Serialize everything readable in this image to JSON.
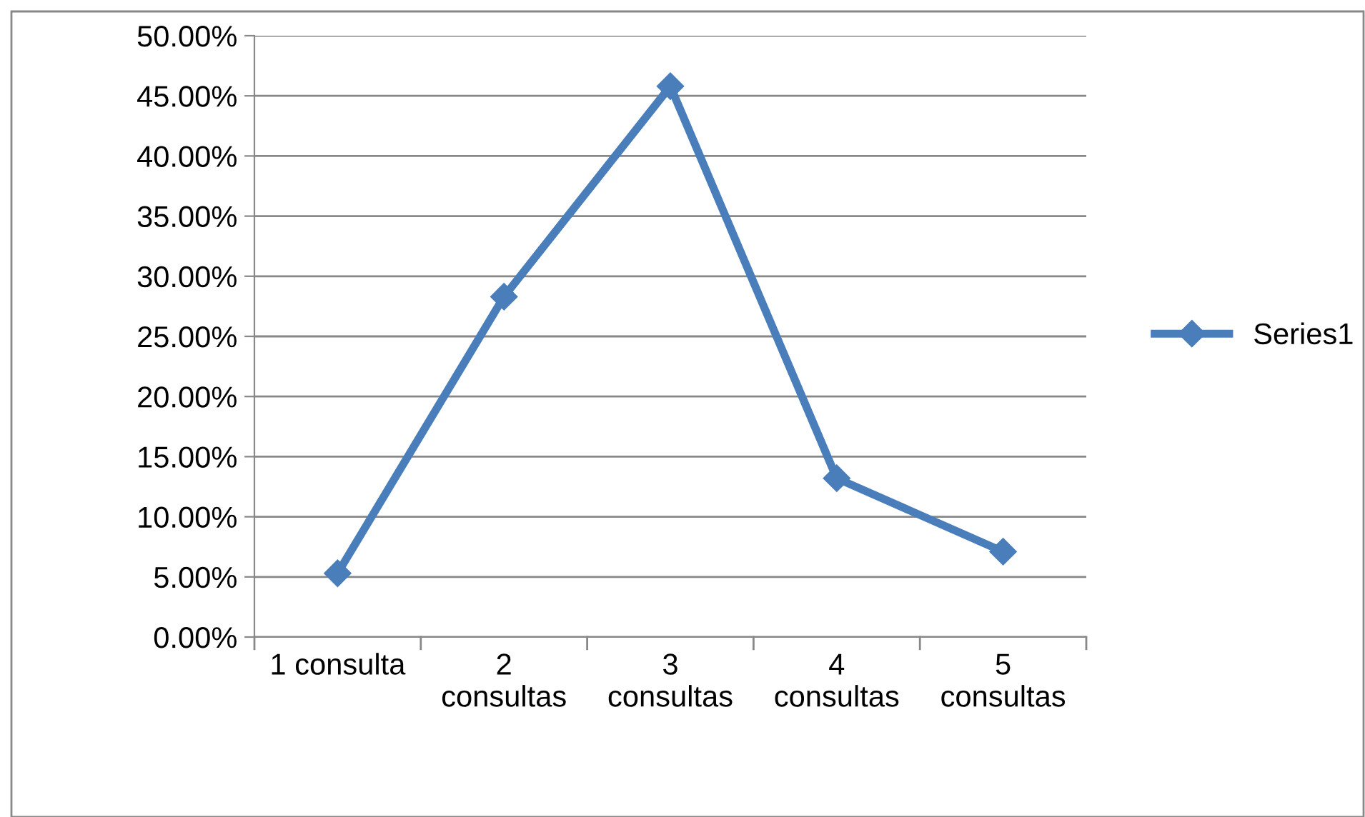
{
  "chart_data": {
    "type": "line",
    "categories": [
      "1 consulta",
      "2\nconsultas",
      "3\nconsultas",
      "4\nconsultas",
      "5\nconsultas"
    ],
    "series": [
      {
        "name": "Series1",
        "color": "#4a7ebb",
        "values": [
          5.3,
          28.3,
          45.8,
          13.2,
          7.1
        ]
      }
    ],
    "ylim": [
      0,
      50
    ],
    "yticks": [
      {
        "value": 0,
        "label": "0.00%"
      },
      {
        "value": 5,
        "label": "5.00%"
      },
      {
        "value": 10,
        "label": "10.00%"
      },
      {
        "value": 15,
        "label": "15.00%"
      },
      {
        "value": 20,
        "label": "20.00%"
      },
      {
        "value": 25,
        "label": "25.00%"
      },
      {
        "value": 30,
        "label": "30.00%"
      },
      {
        "value": 35,
        "label": "35.00%"
      },
      {
        "value": 40,
        "label": "40.00%"
      },
      {
        "value": 45,
        "label": "45.00%"
      },
      {
        "value": 50,
        "label": "50.00%"
      }
    ],
    "grid": "y",
    "legend": "right",
    "marker": "diamond",
    "line_style": "solid"
  }
}
